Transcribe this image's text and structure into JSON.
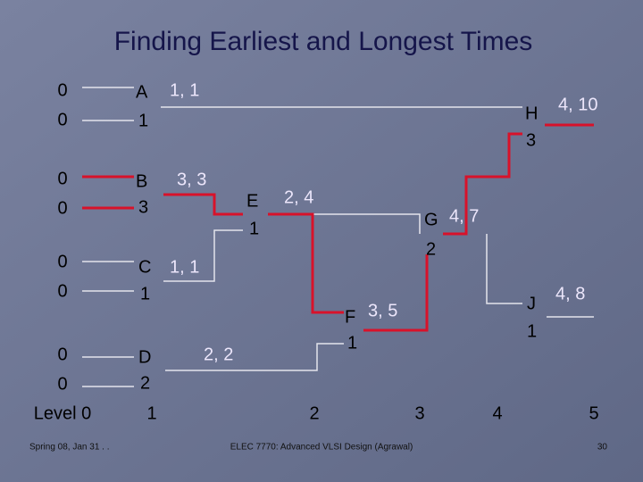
{
  "title": "Finding Earliest and Longest Times",
  "nodes": [
    {
      "name": "A",
      "weight": "1",
      "times": "1, 1",
      "inputs": [
        "0",
        "0"
      ]
    },
    {
      "name": "B",
      "weight": "3",
      "times": "3, 3",
      "inputs": [
        "0",
        "0"
      ]
    },
    {
      "name": "C",
      "weight": "1",
      "times": "1, 1",
      "inputs": [
        "0",
        "0"
      ]
    },
    {
      "name": "D",
      "weight": "2",
      "times": "2, 2",
      "inputs": [
        "0",
        "0"
      ]
    },
    {
      "name": "E",
      "weight": "1",
      "times": "2, 4"
    },
    {
      "name": "F",
      "weight": "1",
      "times": "3, 5"
    },
    {
      "name": "G",
      "weight": "2",
      "times": "4, 7"
    },
    {
      "name": "H",
      "weight": "3",
      "times": "4, 10"
    },
    {
      "name": "J",
      "weight": "1",
      "times": "4, 8"
    }
  ],
  "levels": [
    "Level 0",
    "1",
    "2",
    "3",
    "4",
    "5"
  ],
  "footer": {
    "left": "Spring 08, Jan 31 . .",
    "center": "ELEC 7770: Advanced VLSI Design (Agrawal)",
    "page": "30"
  }
}
